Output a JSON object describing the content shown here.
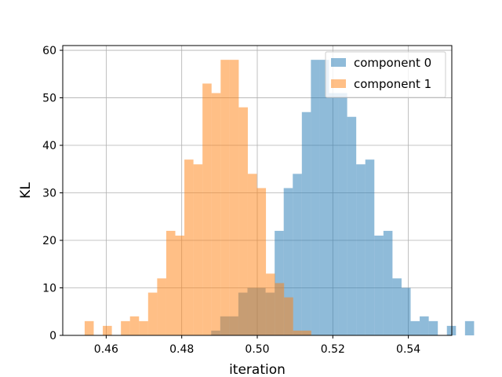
{
  "chart_data": {
    "type": "histogram",
    "xlabel": "iteration",
    "ylabel": "KL",
    "xlim": [
      0.4485,
      0.5515
    ],
    "ylim": [
      0,
      61
    ],
    "xticks": [
      0.46,
      0.48,
      0.5,
      0.52,
      0.54
    ],
    "xtick_labels": [
      "0.46",
      "0.48",
      "0.50",
      "0.52",
      "0.54"
    ],
    "yticks": [
      0,
      10,
      20,
      30,
      40,
      50,
      60
    ],
    "ytick_labels": [
      "0",
      "10",
      "20",
      "30",
      "40",
      "50",
      "60"
    ],
    "grid": true,
    "legend_position": "top-right",
    "bin_width": 0.0024,
    "series": [
      {
        "name": "component 0",
        "color": "#1f77b4",
        "alpha": 0.5,
        "bin_start": 0.4878,
        "counts": [
          1,
          4,
          4,
          9,
          10,
          10,
          9,
          22,
          31,
          34,
          47,
          58,
          58,
          51,
          51,
          46,
          36,
          37,
          21,
          22,
          12,
          10,
          3,
          4,
          3,
          0,
          2,
          0,
          3
        ]
      },
      {
        "name": "component 1",
        "color": "#ff7f0e",
        "alpha": 0.5,
        "bin_start": 0.4543,
        "counts": [
          3,
          0,
          2,
          0,
          3,
          4,
          3,
          9,
          12,
          22,
          21,
          37,
          36,
          53,
          51,
          58,
          58,
          48,
          34,
          31,
          13,
          11,
          8,
          1,
          1
        ]
      }
    ]
  }
}
